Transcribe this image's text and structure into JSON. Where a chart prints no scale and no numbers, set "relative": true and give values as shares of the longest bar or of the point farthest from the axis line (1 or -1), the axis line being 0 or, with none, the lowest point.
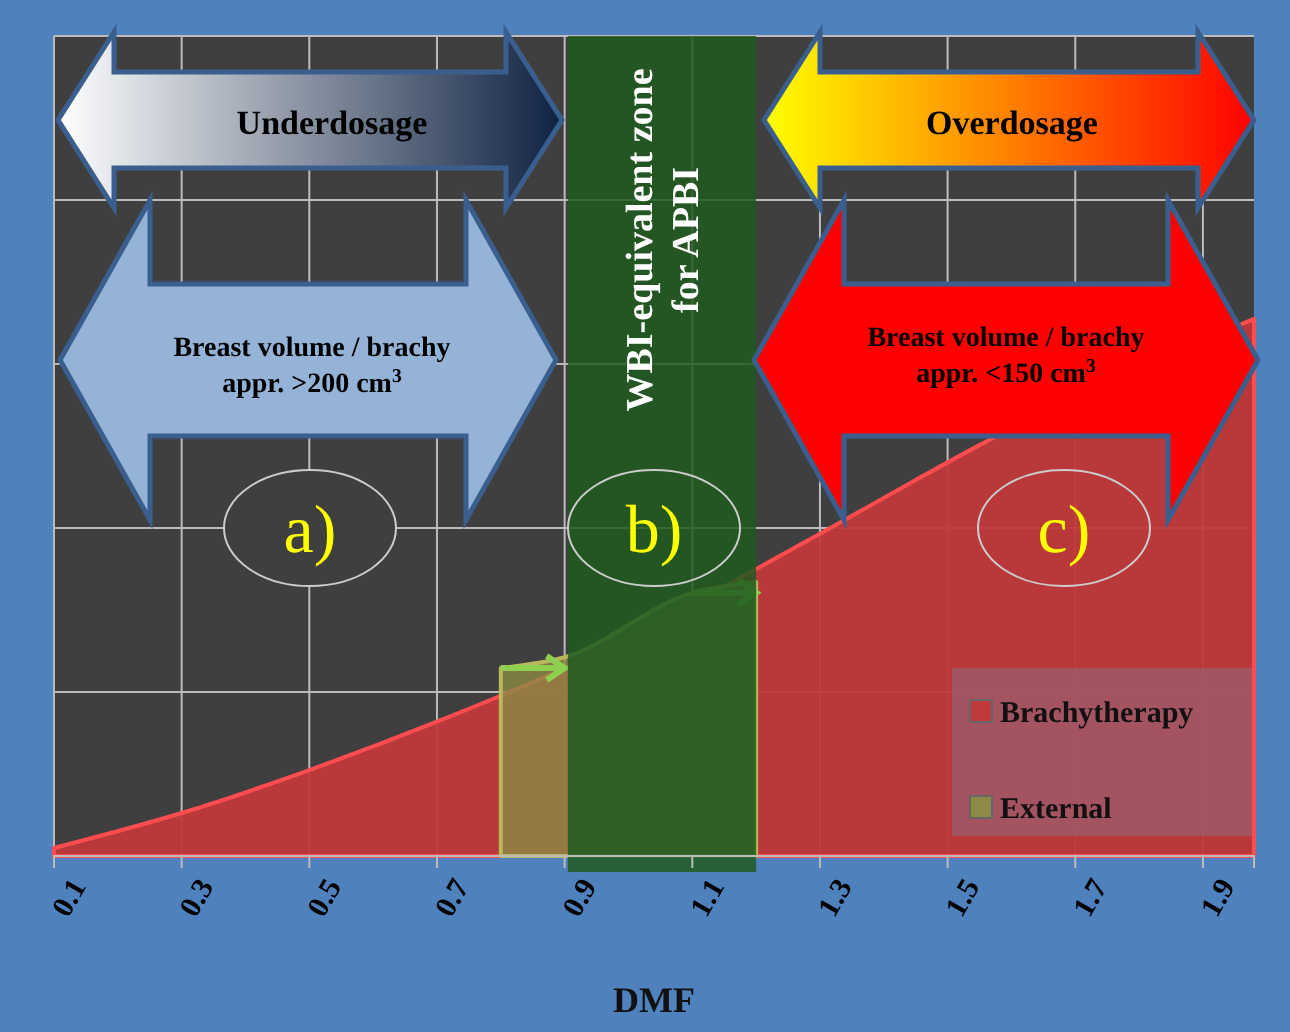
{
  "chart_data": {
    "type": "area",
    "relative": true,
    "xlabel": "DMF",
    "xlim": [
      0.1,
      1.98
    ],
    "xticks": [
      0.1,
      0.3,
      0.5,
      0.7,
      0.9,
      1.1,
      1.3,
      1.5,
      1.7,
      1.9
    ],
    "grid": true,
    "legend": "bottom right",
    "series": [
      {
        "name": "Brachytherapy",
        "color": "#c0393b",
        "x": [
          0.1,
          0.3,
          0.5,
          0.7,
          0.9,
          1.1,
          1.3,
          1.45,
          1.55,
          1.98
        ],
        "values": [
          0.015,
          0.08,
          0.16,
          0.25,
          0.35,
          0.47,
          0.6,
          0.7,
          0.765,
          1
        ]
      },
      {
        "name": "External",
        "color": "#8c8a45",
        "x": [
          0.8,
          0.9,
          1.1,
          1.2
        ],
        "values": [
          0.35,
          0.37,
          0.49,
          0.51
        ]
      }
    ],
    "bands": [
      {
        "axis": "x",
        "from": 0.905,
        "to": 1.2,
        "label": "WBI-equivalent zone for APBI",
        "color": "#1e5a1e"
      }
    ],
    "annotations": [
      "Underdosage",
      "Overdosage",
      "Breast volume   / brachy appr. >200 cm$^{3}$",
      "Breast volume   / brachy appr. <150 cm$^{3}$",
      "a)",
      "b)",
      "c)"
    ]
  }
}
